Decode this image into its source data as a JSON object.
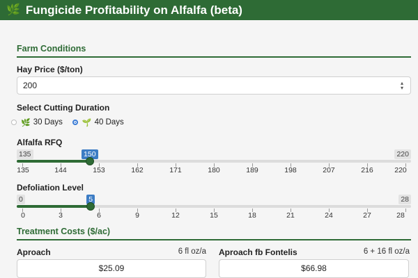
{
  "header": {
    "title": "Fungicide Profitability on Alfalfa (beta)",
    "logo_icon": "leaf-icon",
    "bg_color": "#2e6b35"
  },
  "farm_conditions": {
    "section_title": "Farm Conditions",
    "hay_price": {
      "label": "Hay Price ($/ton)",
      "value": "200"
    },
    "cutting_duration": {
      "label": "Select Cutting Duration",
      "options": [
        {
          "label": "30 Days",
          "icon": "leaf-icon",
          "selected": false
        },
        {
          "label": "40 Days",
          "icon": "seedling-icon",
          "selected": true
        }
      ]
    },
    "rfq_slider": {
      "label": "Alfalfa RFQ",
      "min": 135,
      "max": 220,
      "value": 150,
      "min_label": "135",
      "max_label": "220",
      "value_label": "150",
      "ticks": [
        "135",
        "144",
        "153",
        "162",
        "171",
        "180",
        "189",
        "198",
        "207",
        "216",
        "220"
      ]
    },
    "defoliation_slider": {
      "label": "Defoliation Level",
      "min": 0,
      "max": 28,
      "value": 5,
      "min_label": "0",
      "max_label": "28",
      "value_label": "5",
      "ticks": [
        "0",
        "3",
        "6",
        "9",
        "12",
        "15",
        "18",
        "21",
        "24",
        "27",
        "28"
      ]
    }
  },
  "treatment_costs": {
    "section_title": "Treatment Costs ($/ac)",
    "items": [
      {
        "name": "Aproach",
        "rate": "6 fl oz/a",
        "cost": "$25.09"
      },
      {
        "name": "Aproach fb Fontelis",
        "rate": "6 + 16 fl oz/a",
        "cost": "$66.98"
      }
    ]
  },
  "colors": {
    "accent_green": "#2e6b35",
    "slider_value_blue": "#3c7cc4",
    "radio_blue": "#3a7bd5"
  }
}
